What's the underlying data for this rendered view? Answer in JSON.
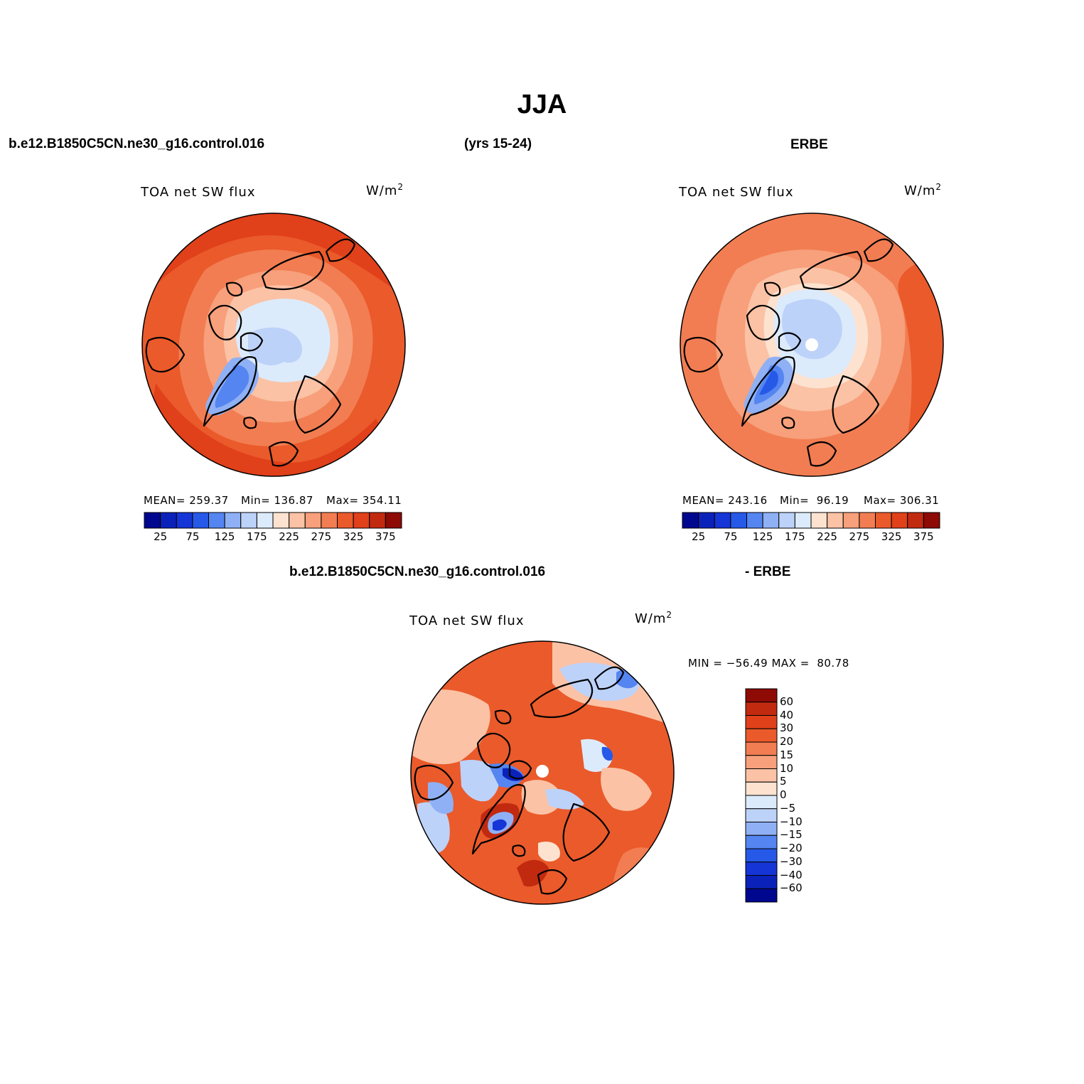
{
  "figure": {
    "season": "JJA",
    "case_name": "b.e12.B1850C5CN.ne30_g16.control.016",
    "years": "(yrs 15-24)",
    "obs_name": "ERBE",
    "diff_case_name": "b.e12.B1850C5CN.ne30_g16.control.016",
    "diff_obs_name": "- ERBE"
  },
  "panels": {
    "model": {
      "variable": "TOA net SW flux",
      "units_base": "W/m",
      "units_exp": "2",
      "mean_text": "MEAN= 259.37",
      "min_text": "Min= 136.87",
      "max_text": "Max= 354.11"
    },
    "obs": {
      "variable": "TOA net SW flux",
      "units_base": "W/m",
      "units_exp": "2",
      "mean_text": "MEAN= 243.16",
      "min_text": "Min=  96.19",
      "max_text": "Max= 306.31"
    },
    "diff": {
      "variable": "TOA net SW flux",
      "units_base": "W/m",
      "units_exp": "2",
      "minmax_text": "MIN = −56.49 MAX =  80.78"
    }
  },
  "colorbars": {
    "absolute": {
      "colors": [
        "#00078f",
        "#0b22ba",
        "#1535d6",
        "#2659e8",
        "#5585f0",
        "#8fb0f5",
        "#bdd2f9",
        "#dcebfc",
        "#fde2d0",
        "#fbc2a5",
        "#f7a07b",
        "#f27d52",
        "#ea5a2b",
        "#e0401a",
        "#c22a10",
        "#8e0a05"
      ],
      "tick_labels": [
        "25",
        "75",
        "125",
        "175",
        "225",
        "275",
        "325",
        "375"
      ]
    },
    "difference": {
      "colors": [
        "#8e0a05",
        "#c22a10",
        "#e0401a",
        "#ea5a2b",
        "#f27d52",
        "#f7a07b",
        "#fbc2a5",
        "#fde2d0",
        "#dcebfc",
        "#bdd2f9",
        "#8fb0f5",
        "#5585f0",
        "#2659e8",
        "#1535d6",
        "#0b22ba",
        "#00078f"
      ],
      "tick_labels": [
        "60",
        "40",
        "30",
        "20",
        "15",
        "10",
        "5",
        "0",
        "−5",
        "−10",
        "−15",
        "−20",
        "−30",
        "−40",
        "−60"
      ]
    }
  }
}
